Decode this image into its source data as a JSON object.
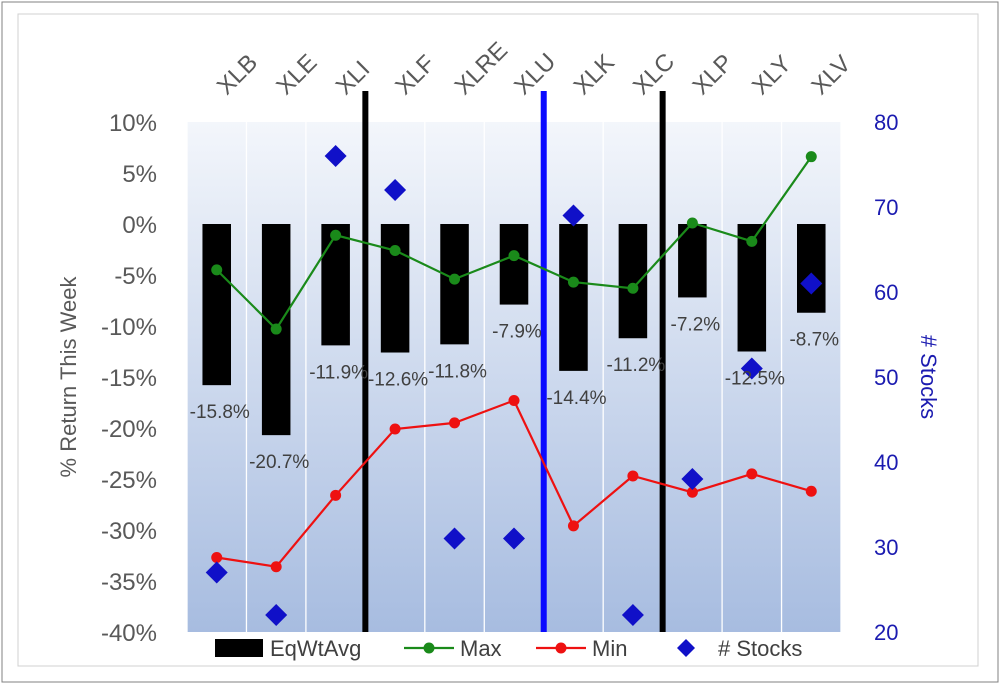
{
  "chart_data": {
    "type": "bar",
    "categories": [
      "XLB",
      "XLE",
      "XLI",
      "XLF",
      "XLRE",
      "XLU",
      "XLK",
      "XLC",
      "XLP",
      "XLY",
      "XLV"
    ],
    "series": [
      {
        "name": "EqWtAvg",
        "kind": "bar",
        "axis": "left",
        "color": "#000000",
        "values": [
          -15.8,
          -20.7,
          -11.9,
          -12.6,
          -11.8,
          -7.9,
          -14.4,
          -11.2,
          -7.2,
          -12.5,
          -8.7
        ],
        "labels": [
          "-15.8%",
          "-20.7%",
          "-11.9%",
          "-12.6%",
          "-11.8%",
          "-7.9%",
          "-14.4%",
          "-11.2%",
          "-7.2%",
          "-12.5%",
          "-8.7%"
        ]
      },
      {
        "name": "Max",
        "kind": "line",
        "axis": "left",
        "color": "#1a8a1a",
        "values": [
          -4.5,
          -10.3,
          -1.1,
          -2.6,
          -5.4,
          -3.1,
          -5.7,
          -6.3,
          0.1,
          -1.7,
          6.6
        ]
      },
      {
        "name": "Min",
        "kind": "line",
        "axis": "left",
        "color": "#ee1111",
        "values": [
          -32.7,
          -33.6,
          -26.6,
          -20.1,
          -19.5,
          -17.3,
          -29.6,
          -24.7,
          -26.3,
          -24.5,
          -26.2
        ]
      },
      {
        "name": "# Stocks",
        "kind": "scatter",
        "axis": "right",
        "color": "#1010c8",
        "values": [
          27,
          22,
          76,
          72,
          31,
          31,
          69,
          22,
          38,
          51,
          61
        ]
      }
    ],
    "ylabel": "% Return This Week",
    "ylim": [
      -40,
      10
    ],
    "yticks": [
      "10%",
      "5%",
      "0%",
      "-5%",
      "-10%",
      "-15%",
      "-20%",
      "-25%",
      "-30%",
      "-35%",
      "-40%"
    ],
    "y2label": "# Stocks",
    "y2lim": [
      20,
      80
    ],
    "y2ticks": [
      "80",
      "70",
      "60",
      "50",
      "40",
      "30",
      "20"
    ],
    "separators": [
      {
        "between": [
          "XLI",
          "XLF"
        ],
        "color": "#000000"
      },
      {
        "between": [
          "XLU",
          "XLK"
        ],
        "color": "#0a0aff"
      },
      {
        "between": [
          "XLC",
          "XLP"
        ],
        "color": "#000000"
      }
    ],
    "legend": [
      "EqWtAvg",
      "Max",
      "Min",
      "# Stocks"
    ],
    "legend_position": "bottom",
    "grid": "vertical"
  }
}
